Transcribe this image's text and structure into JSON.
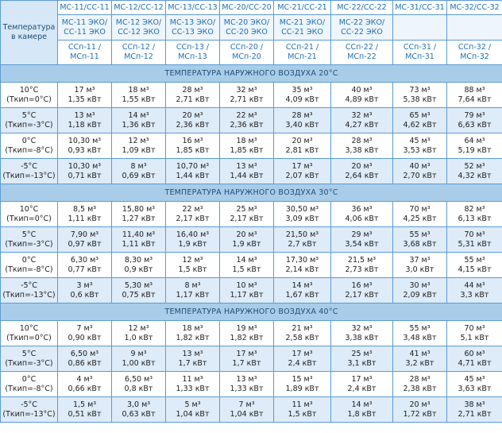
{
  "header": {
    "corner": "Температура в камере",
    "models": [
      {
        "name": "МС-11/СС-11",
        "eco": [
          "МС-11 ЭКО/",
          "СС-11 ЭКО"
        ],
        "ssp": [
          "ССп-11 /",
          "МСп-11"
        ]
      },
      {
        "name": "МС-12/СС-12",
        "eco": [
          "МС-12 ЭКО/",
          "СС-12 ЭКО"
        ],
        "ssp": [
          "ССп-12 /",
          "МСп-12"
        ]
      },
      {
        "name": "МС-13/СС-13",
        "eco": [
          "МС-13 ЭКО/",
          "СС-13 ЭКО"
        ],
        "ssp": [
          "ССп-13 /",
          "МСп-13"
        ]
      },
      {
        "name": "МС-20/СС-20",
        "eco": [
          "МС-20 ЭКО/",
          "СС-20 ЭКО"
        ],
        "ssp": [
          "ССп-20 /",
          "МСп-20"
        ]
      },
      {
        "name": "МС-21/СС-21",
        "eco": [
          "МС-21 ЭКО/",
          "СС-21 ЭКО"
        ],
        "ssp": [
          "ССп-21 /",
          "МСп-21"
        ]
      },
      {
        "name": "МС-22/СС-22",
        "eco": [
          "МС-22 ЭКО/",
          "СС-22 ЭКО"
        ],
        "ssp": [
          "ССп-22 /",
          "МСп-22"
        ]
      },
      {
        "name": "МС-31/СС-31",
        "ssp": [
          "ССп-31 /",
          "МСп-31"
        ]
      },
      {
        "name": "МС-32/СС-32",
        "ssp": [
          "ССп-32 /",
          "МСп-32"
        ]
      }
    ]
  },
  "sections": [
    {
      "title": "ТЕМПЕРАТУРА НАРУЖНОГО ВОЗДУХА 20°С",
      "rows": [
        {
          "temp": "10°С",
          "tkip": "(Ткип=0°С)",
          "cells": [
            [
              "17 м³",
              "1,35 кВт"
            ],
            [
              "18 м³",
              "1,55 кВт"
            ],
            [
              "28 м³",
              "2,71 кВт"
            ],
            [
              "32 м³",
              "2,71 кВт"
            ],
            [
              "35 м³",
              "4,09 кВт"
            ],
            [
              "40 м³",
              "4,89 кВт"
            ],
            [
              "73 м³",
              "5,38 кВт"
            ],
            [
              "88 м³",
              "7,64 кВт"
            ]
          ]
        },
        {
          "temp": "5°С",
          "tkip": "(Ткип=-3°С)",
          "cells": [
            [
              "13 м³",
              "1,18 кВт"
            ],
            [
              "14 м³",
              "1,36 кВт"
            ],
            [
              "20 м³",
              "2,36 кВт"
            ],
            [
              "22 м³",
              "2,36 кВт"
            ],
            [
              "28 м³",
              "3,40 кВт"
            ],
            [
              "32 м³",
              "4,27 кВт"
            ],
            [
              "65 м³",
              "4,62 кВт"
            ],
            [
              "79 м³",
              "6,63 кВт"
            ]
          ]
        },
        {
          "temp": "0°С",
          "tkip": "(Ткип=-8°С)",
          "cells": [
            [
              "10,30 м³",
              "0,93 кВт"
            ],
            [
              "12 м³",
              "1,09 кВт"
            ],
            [
              "16 м³",
              "1,85 кВт"
            ],
            [
              "18 м³",
              "1,85 кВт"
            ],
            [
              "20 м³",
              "2,81 кВт"
            ],
            [
              "28 м³",
              "3,38 кВт"
            ],
            [
              "45 м³",
              "3,53 кВт"
            ],
            [
              "64 м³",
              "5,19 кВт"
            ]
          ]
        },
        {
          "temp": "-5°С",
          "tkip": "(Ткип=-13°С)",
          "cells": [
            [
              "10,30 м³",
              "0,71 кВт"
            ],
            [
              "8 м³",
              "0,69 кВт"
            ],
            [
              "10,70 м³",
              "1,44 кВт"
            ],
            [
              "13 м³",
              "1,44 кВт"
            ],
            [
              "17 м³",
              "2,07 кВт"
            ],
            [
              "20 м³",
              "2,64 кВт"
            ],
            [
              "40 м³",
              "2,70 кВт"
            ],
            [
              "52 м³",
              "4,32 кВт"
            ]
          ]
        }
      ]
    },
    {
      "title": "ТЕМПЕРАТУРА НАРУЖНОГО ВОЗДУХА 30°С",
      "rows": [
        {
          "temp": "10°С",
          "tkip": "(Ткип=0°С)",
          "cells": [
            [
              "8,5 м³",
              "1,11 кВт"
            ],
            [
              "15,80 м³",
              "1,27 кВт"
            ],
            [
              "22 м³",
              "2,17 кВт"
            ],
            [
              "25 м³",
              "2,17 кВт"
            ],
            [
              "30,50 м³",
              "3,09 кВт"
            ],
            [
              "36 м³",
              "4,06 кВт"
            ],
            [
              "70 м³",
              "4,25 кВт"
            ],
            [
              "82 м³",
              "6,13 кВт"
            ]
          ]
        },
        {
          "temp": "5°С",
          "tkip": "(Ткип=-3°С)",
          "cells": [
            [
              "7,90 м³",
              "0,97 кВт"
            ],
            [
              "11,40 м³",
              "1,11 кВт"
            ],
            [
              "16,40 м³",
              "1,9 кВт"
            ],
            [
              "20 м³",
              "1,9 кВт"
            ],
            [
              "21,50 м³",
              "2,7 кВт"
            ],
            [
              "29 м³",
              "3,54 кВт"
            ],
            [
              "55 м³",
              "3,68 кВт"
            ],
            [
              "70 м³",
              "5,31 кВт"
            ]
          ]
        },
        {
          "temp": "0°С",
          "tkip": "(Ткип=-8°С)",
          "cells": [
            [
              "6,30 м³",
              "0,77 кВт"
            ],
            [
              "8,30 м³",
              "0,9 кВт"
            ],
            [
              "12 м³",
              "1,5 кВт"
            ],
            [
              "14 м³",
              "1,5 кВт"
            ],
            [
              "17,30 м³",
              "2,14 кВт"
            ],
            [
              "21,5 м³",
              "2,73 кВт"
            ],
            [
              "37 м³",
              "3,0 кВт"
            ],
            [
              "55 м³",
              "4,15 кВт"
            ]
          ]
        },
        {
          "temp": "-5°С",
          "tkip": "(Ткип=-13°С)",
          "cells": [
            [
              "3 м³",
              "0,6 кВт"
            ],
            [
              "5,30 м³",
              "0,75 кВт"
            ],
            [
              "8 м³",
              "1,17 кВт"
            ],
            [
              "10 м³",
              "1,17 кВт"
            ],
            [
              "14 м³",
              "1,67 кВт"
            ],
            [
              "16 м³",
              "2,17 кВт"
            ],
            [
              "30 м³",
              "2,09 кВт"
            ],
            [
              "44 м³",
              "3,3 кВт"
            ]
          ]
        }
      ]
    },
    {
      "title": "ТЕМПЕРАТУРА НАРУЖНОГО ВОЗДУХА 40°С",
      "rows": [
        {
          "temp": "10°С",
          "tkip": "(Ткип=0°С)",
          "cells": [
            [
              "7 м³",
              "0,90 кВт"
            ],
            [
              "12 м³",
              "1,0 кВт"
            ],
            [
              "18 м³",
              "1,82 кВт"
            ],
            [
              "19 м³",
              "1,82 кВт"
            ],
            [
              "21 м³",
              "2,58 кВт"
            ],
            [
              "32 м³",
              "3,38 кВт"
            ],
            [
              "55 м³",
              "3,48 кВт"
            ],
            [
              "70 м³",
              "5,1 кВт"
            ]
          ]
        },
        {
          "temp": "5°С",
          "tkip": "(Ткип=-3°С)",
          "cells": [
            [
              "6,50 м³",
              "0,86 кВт"
            ],
            [
              "9 м³",
              "1,00 кВт"
            ],
            [
              "13 м³",
              "1,7 кВт"
            ],
            [
              "17 м³",
              "1,7 кВт"
            ],
            [
              "17 м³",
              "2,4 кВт"
            ],
            [
              "25 м³",
              "3,1 кВт"
            ],
            [
              "41 м³",
              "3,2 кВт"
            ],
            [
              "60 м³",
              "4,71 кВт"
            ]
          ]
        },
        {
          "temp": "0°С",
          "tkip": "(Ткип=-8°С)",
          "cells": [
            [
              "4 м³",
              "0,66 кВт"
            ],
            [
              "6,50 м³",
              "0,8 кВт"
            ],
            [
              "11 м³",
              "1,33 кВт"
            ],
            [
              "13 м³",
              "1,33 кВт"
            ],
            [
              "15 м³",
              "1,89 кВт"
            ],
            [
              "17 м³",
              "2,4 кВт"
            ],
            [
              "28 м³",
              "2,38 кВт"
            ],
            [
              "45 м³",
              "3,63 кВт"
            ]
          ]
        },
        {
          "temp": "-5°С",
          "tkip": "(Ткип=-13°С)",
          "cells": [
            [
              "1,5 м³",
              "0,51 кВт"
            ],
            [
              "3,0 м³",
              "0,63 кВт"
            ],
            [
              "5 м³",
              "1,04 кВт"
            ],
            [
              "7 м³",
              "1,04 кВт"
            ],
            [
              "11 м³",
              "1,5 кВт"
            ],
            [
              "14 м³",
              "1,8 кВт"
            ],
            [
              "20 м³",
              "1,72 кВт"
            ],
            [
              "38 м³",
              "2,71 кВт"
            ]
          ]
        }
      ]
    }
  ]
}
